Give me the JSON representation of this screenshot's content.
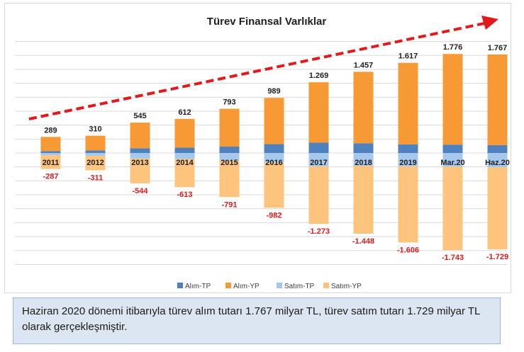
{
  "chart_data": {
    "type": "bar",
    "stacked": true,
    "title": "Türev Finansal Varlıklar",
    "categories": [
      "2011",
      "2012",
      "2013",
      "2014",
      "2015",
      "2016",
      "2017",
      "2018",
      "2019",
      "Mar.20",
      "Haz.20"
    ],
    "series": [
      {
        "name": "Alım-TP",
        "color": "#4f81bd",
        "values": [
          35,
          45,
          85,
          95,
          115,
          160,
          185,
          175,
          155,
          150,
          140
        ]
      },
      {
        "name": "Alım-YP",
        "color": "#f79a36",
        "values": [
          254,
          265,
          460,
          517,
          678,
          829,
          1084,
          1282,
          1462,
          1626,
          1627
        ]
      },
      {
        "name": "Satım-TP",
        "color": "#a6c8ec",
        "values": [
          -40,
          -50,
          -100,
          -110,
          -135,
          -170,
          -240,
          -230,
          -240,
          -245,
          -255
        ]
      },
      {
        "name": "Satım-YP",
        "color": "#fcc47c",
        "values": [
          -247,
          -261,
          -444,
          -503,
          -656,
          -812,
          -1033,
          -1218,
          -1366,
          -1498,
          -1474
        ]
      }
    ],
    "total_labels_positive": [
      "289",
      "310",
      "545",
      "612",
      "793",
      "989",
      "1.269",
      "1.457",
      "1.617",
      "1.776",
      "1.767"
    ],
    "total_labels_negative": [
      "-287",
      "-311",
      "-544",
      "-613",
      "-791",
      "-982",
      "-1.273",
      "-1.448",
      "-1.606",
      "-1.743",
      "-1.729"
    ],
    "ylim": [
      -2000,
      2000
    ],
    "grid": true,
    "legend_position": "bottom",
    "trend_arrow_color": "#e3191b"
  },
  "caption": {
    "text": "Haziran 2020 dönemi itibarıyla türev alım tutarı 1.767 milyar TL, türev satım tutarı 1.729 milyar TL olarak gerçekleşmiştir."
  }
}
